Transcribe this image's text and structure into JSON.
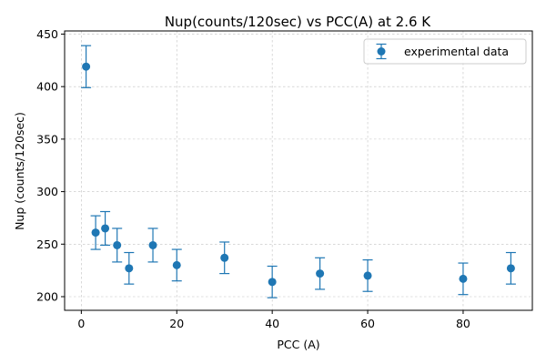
{
  "chart_data": {
    "type": "scatter",
    "title": "Nup(counts/120sec) vs PCC(A) at 2.6 K",
    "xlabel": "PCC (A)",
    "ylabel": "Nup (counts/120sec)",
    "xlim": [
      -3.5,
      94.5
    ],
    "ylim": [
      187,
      453
    ],
    "xticks": [
      0,
      20,
      40,
      60,
      80
    ],
    "yticks": [
      200,
      250,
      300,
      350,
      400,
      450
    ],
    "grid": true,
    "legend_position": "top-right",
    "series": [
      {
        "name": "experimental data",
        "color": "#1f77b4",
        "marker": "circle",
        "points": [
          {
            "x": 1,
            "y": 419,
            "err": 20
          },
          {
            "x": 3,
            "y": 261,
            "err": 16
          },
          {
            "x": 5,
            "y": 265,
            "err": 16
          },
          {
            "x": 7.5,
            "y": 249,
            "err": 16
          },
          {
            "x": 10,
            "y": 227,
            "err": 15
          },
          {
            "x": 15,
            "y": 249,
            "err": 16
          },
          {
            "x": 20,
            "y": 230,
            "err": 15
          },
          {
            "x": 30,
            "y": 237,
            "err": 15
          },
          {
            "x": 40,
            "y": 214,
            "err": 15
          },
          {
            "x": 50,
            "y": 222,
            "err": 15
          },
          {
            "x": 60,
            "y": 220,
            "err": 15
          },
          {
            "x": 80,
            "y": 217,
            "err": 15
          },
          {
            "x": 90,
            "y": 227,
            "err": 15
          }
        ]
      }
    ]
  }
}
